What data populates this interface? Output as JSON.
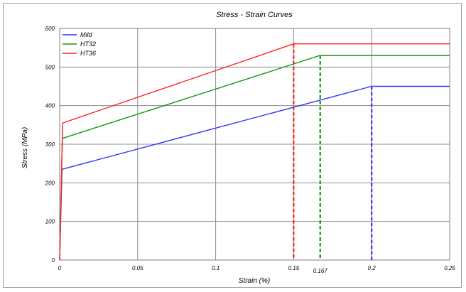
{
  "chart_data": {
    "type": "line",
    "title": "Stress - Strain Curves",
    "xlabel": "Strain (%)",
    "ylabel": "Stress (MPa)",
    "xlim": [
      0,
      0.25
    ],
    "ylim": [
      0,
      600
    ],
    "xticks": [
      0,
      0.05,
      0.1,
      0.15,
      0.167,
      0.2,
      0.25
    ],
    "xtick_labels": [
      "0",
      "0.05",
      "0.1",
      "0.15",
      "0.167",
      "0.2",
      "0.25"
    ],
    "yticks": [
      0,
      100,
      200,
      300,
      400,
      500,
      600
    ],
    "ytick_labels": [
      "0",
      "100",
      "200",
      "300",
      "400",
      "500",
      "600"
    ],
    "grid": true,
    "legend_position": "top-left",
    "series": [
      {
        "name": "Mild",
        "color": "#3333ff",
        "points": [
          [
            0,
            0
          ],
          [
            0.0015,
            235
          ],
          [
            0.2,
            450
          ],
          [
            0.25,
            450
          ]
        ],
        "drop": [
          0.2,
          450
        ]
      },
      {
        "name": "HT32",
        "color": "#119911",
        "points": [
          [
            0,
            0
          ],
          [
            0.0017,
            315
          ],
          [
            0.167,
            530
          ],
          [
            0.25,
            530
          ]
        ],
        "drop": [
          0.167,
          530
        ]
      },
      {
        "name": "HT36",
        "color": "#ff2222",
        "points": [
          [
            0,
            0
          ],
          [
            0.0019,
            355
          ],
          [
            0.15,
            560
          ],
          [
            0.25,
            560
          ]
        ],
        "drop": [
          0.15,
          560
        ]
      }
    ]
  }
}
